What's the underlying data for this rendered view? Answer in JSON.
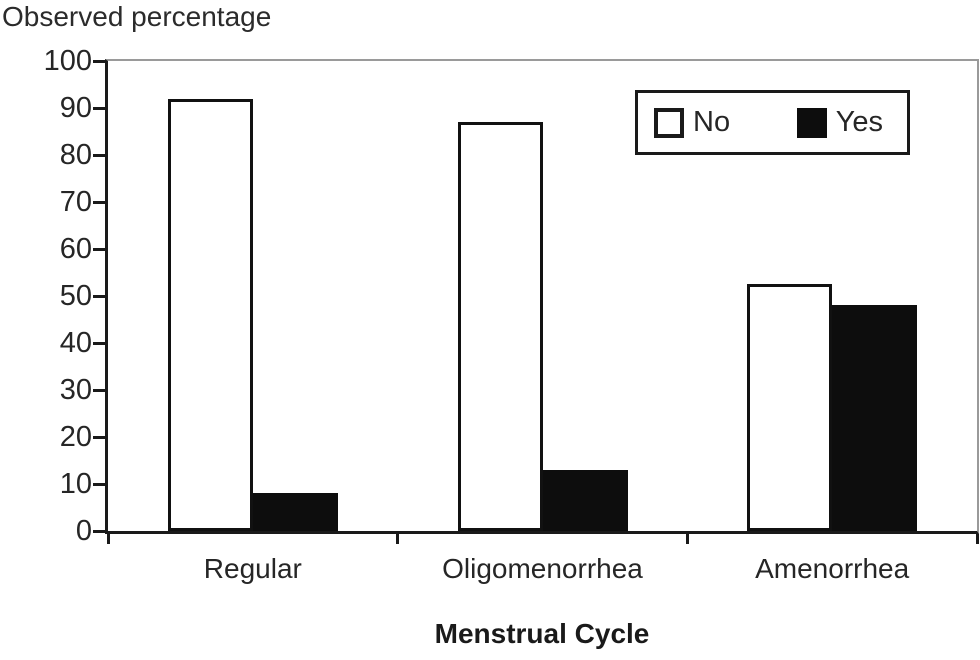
{
  "chart_data": {
    "type": "bar",
    "title": "Observed percentage",
    "xlabel": "Menstrual Cycle",
    "ylabel": "Observed percentage",
    "categories": [
      "Regular",
      "Oligomenorrhea",
      "Amenorrhea"
    ],
    "series": [
      {
        "name": "No",
        "color": "#ffffff",
        "values": [
          92,
          87,
          52.5
        ]
      },
      {
        "name": "Yes",
        "color": "#0d0d0d",
        "values": [
          8,
          13,
          48
        ]
      }
    ],
    "ylim": [
      0,
      100
    ],
    "yticks": [
      0,
      10,
      20,
      30,
      40,
      50,
      60,
      70,
      80,
      90,
      100
    ],
    "grid": false,
    "legend_position": "top-right",
    "legend_entries": [
      "No",
      "Yes"
    ]
  },
  "colors": {
    "axis": "#1a1a1a",
    "frame": "#9a9a9a",
    "bar_yes": "#0d0d0d",
    "bar_no": "#ffffff",
    "text": "#262626"
  }
}
